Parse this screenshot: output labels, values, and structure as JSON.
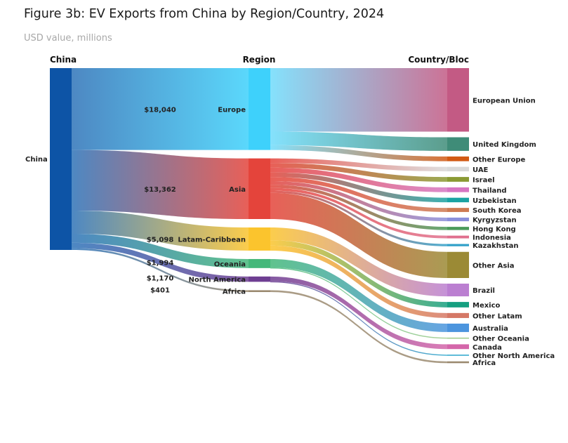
{
  "title": "Figure 3b: EV Exports from China by Region/Country, 2024",
  "subtitle": "USD value, millions",
  "colors": {
    "china": "#0d54a6",
    "europe": "#3ed1fb",
    "asia": "#e4443b",
    "latam": "#fbc42d",
    "oceania": "#44b87a",
    "northamerica": "#6e3e92",
    "africa": "#9b8a70"
  },
  "chart_data": {
    "type": "sankey",
    "column_headers": {
      "source": "China",
      "middle": "Region",
      "target": "Country/Bloc"
    },
    "source": {
      "id": "china",
      "label": "China"
    },
    "regions": [
      {
        "id": "europe",
        "label": "Europe",
        "value": 18040,
        "value_label": "$18,040"
      },
      {
        "id": "asia",
        "label": "Asia",
        "value": 13362,
        "value_label": "$13,362"
      },
      {
        "id": "latam",
        "label": "Latam-Caribbean",
        "value": 5098,
        "value_label": "$5,098"
      },
      {
        "id": "oceania",
        "label": "Oceania",
        "value": 1994,
        "value_label": "$1,994"
      },
      {
        "id": "northamerica",
        "label": "North America",
        "value": 1170,
        "value_label": "$1,170"
      },
      {
        "id": "africa",
        "label": "Africa",
        "value": 401,
        "value_label": "$401"
      }
    ],
    "countries": [
      {
        "label": "European Union",
        "region": "europe",
        "value": 14000,
        "color": "#c35a84"
      },
      {
        "label": "United Kingdom",
        "region": "europe",
        "value": 3000,
        "color": "#3f8c78"
      },
      {
        "label": "Other Europe",
        "region": "europe",
        "value": 1040,
        "color": "#d25a14"
      },
      {
        "label": "UAE",
        "region": "asia",
        "value": 1000,
        "color": "#d9d9d9"
      },
      {
        "label": "Israel",
        "region": "asia",
        "value": 1050,
        "color": "#8a9a33"
      },
      {
        "label": "Thailand",
        "region": "asia",
        "value": 1050,
        "color": "#d676c2"
      },
      {
        "label": "Uzbekistan",
        "region": "asia",
        "value": 1000,
        "color": "#1aa3a3"
      },
      {
        "label": "South Korea",
        "region": "asia",
        "value": 900,
        "color": "#cd7a52"
      },
      {
        "label": "Kyrgyzstan",
        "region": "asia",
        "value": 800,
        "color": "#8a8fdb"
      },
      {
        "label": "Hong Kong",
        "region": "asia",
        "value": 700,
        "color": "#4a9a5a"
      },
      {
        "label": "Indonesia",
        "region": "asia",
        "value": 600,
        "color": "#e0708e"
      },
      {
        "label": "Kazakhstan",
        "region": "asia",
        "value": 500,
        "color": "#31a0c8"
      },
      {
        "label": "Other Asia",
        "region": "asia",
        "value": 5762,
        "color": "#9b8a35"
      },
      {
        "label": "Brazil",
        "region": "latam",
        "value": 2800,
        "color": "#bb7fd1"
      },
      {
        "label": "Mexico",
        "region": "latam",
        "value": 1200,
        "color": "#159f80"
      },
      {
        "label": "Other Latam",
        "region": "latam",
        "value": 1098,
        "color": "#d57866"
      },
      {
        "label": "Australia",
        "region": "oceania",
        "value": 1850,
        "color": "#4c95de"
      },
      {
        "label": "Other Oceania",
        "region": "oceania",
        "value": 144,
        "color": "#9ccb8a"
      },
      {
        "label": "Canada",
        "region": "northamerica",
        "value": 1050,
        "color": "#d466aa"
      },
      {
        "label": "Other North America",
        "region": "northamerica",
        "value": 120,
        "color": "#2aa6cc"
      },
      {
        "label": "Africa",
        "region": "africa",
        "value": 401,
        "color": "#9b8a70"
      }
    ]
  }
}
